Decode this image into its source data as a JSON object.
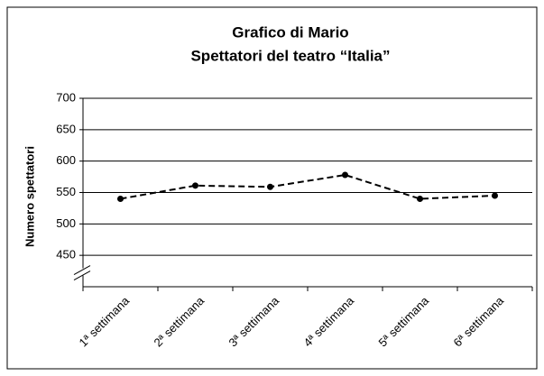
{
  "chart_data": {
    "type": "line",
    "title": [
      "Grafico di Mario",
      "Spettatori del teatro “Italia”"
    ],
    "ylabel": "Numero spettatori",
    "categories": [
      "1ª settimana",
      "2ª settimana",
      "3ª settimana",
      "4ª settimana",
      "5ª settimana",
      "6ª settimana"
    ],
    "series": [
      {
        "color": "#000000",
        "dashed": true,
        "values": [
          540,
          561,
          559,
          578,
          540,
          545
        ]
      }
    ],
    "ylim": [
      400,
      700
    ],
    "yticks": [
      450,
      500,
      550,
      600,
      650,
      700
    ],
    "grid": true,
    "axis_break": true
  }
}
